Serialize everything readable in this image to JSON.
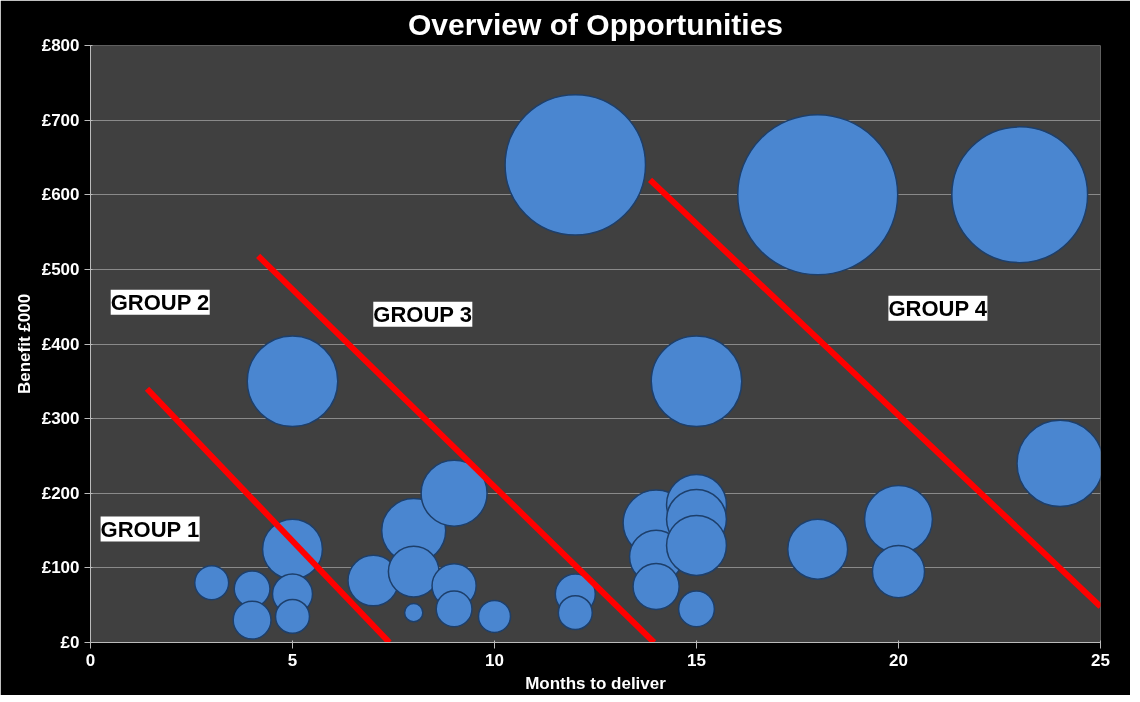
{
  "chart_data": {
    "type": "bubble",
    "title": "Overview of Opportunities",
    "xlabel": "Months to deliver",
    "ylabel": "Benefit £000",
    "xlim": [
      0,
      25
    ],
    "ylim": [
      0,
      800
    ],
    "xticks": [
      0,
      5,
      10,
      15,
      20,
      25
    ],
    "yticks": [
      {
        "value": 0,
        "label": "£0"
      },
      {
        "value": 100,
        "label": "£100"
      },
      {
        "value": 200,
        "label": "£200"
      },
      {
        "value": 300,
        "label": "£300"
      },
      {
        "value": 400,
        "label": "£400"
      },
      {
        "value": 500,
        "label": "£500"
      },
      {
        "value": 600,
        "label": "£600"
      },
      {
        "value": 700,
        "label": "£700"
      },
      {
        "value": 800,
        "label": "£800"
      }
    ],
    "grid": "y",
    "series": [
      {
        "color": "#4a86d0",
        "x": [
          12,
          18,
          23,
          5,
          15,
          24,
          3,
          4,
          4,
          5,
          5,
          5,
          7,
          8,
          8,
          8,
          9,
          9,
          9,
          10,
          12,
          12,
          14,
          14,
          14,
          15,
          15,
          15,
          15,
          18,
          20,
          20
        ],
        "values": [
          640,
          600,
          600,
          350,
          350,
          240,
          80,
          72,
          30,
          125,
          65,
          35,
          83,
          150,
          95,
          40,
          200,
          76,
          45,
          35,
          65,
          40,
          160,
          115,
          75,
          185,
          165,
          130,
          45,
          125,
          165,
          95
        ],
        "sizes": [
          0.77,
          1,
          0.72,
          0.32,
          0.32,
          0.29,
          0.045,
          0.05,
          0.056,
          0.14,
          0.0625,
          0.045,
          0.1,
          0.16,
          0.1,
          0.013,
          0.17,
          0.076,
          0.05,
          0.04,
          0.0625,
          0.045,
          0.17,
          0.11,
          0.083,
          0.14,
          0.14,
          0.14,
          0.05,
          0.14,
          0.18,
          0.106
        ]
      },
      {
        "type": "line",
        "color": "#ff0000",
        "x": [
          1.4,
          7.4
        ],
        "values": [
          340,
          0
        ]
      },
      {
        "type": "line",
        "color": "#ff0000",
        "x": [
          4.15,
          13.95
        ],
        "values": [
          518,
          0
        ]
      },
      {
        "type": "line",
        "color": "#ff0000",
        "x": [
          13.85,
          25
        ],
        "values": [
          620,
          48
        ]
      }
    ],
    "annotations": [
      "GROUP 1",
      "GROUP 2",
      "GROUP 3",
      "GROUP 4"
    ]
  }
}
